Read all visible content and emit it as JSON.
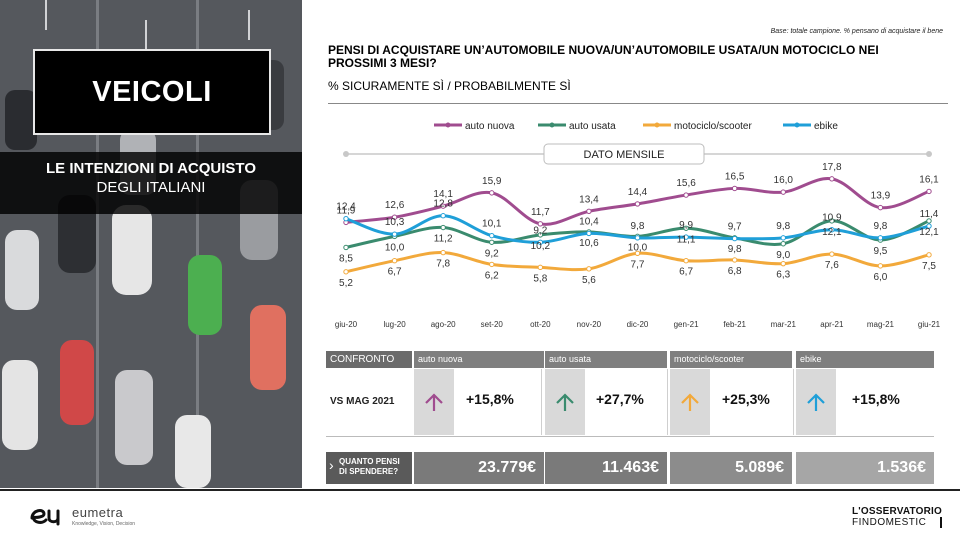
{
  "left_panel": {
    "title": "VEICOLI",
    "subtitle_line1": "LE INTENZIONI DI ACQUISTO",
    "subtitle_line2": "DEGLI ITALIANI"
  },
  "header": {
    "base_note": "Base: totale campione.  % pensano di acquistare il bene",
    "question": "PENSI DI ACQUISTARE  UN’AUTOMOBILE  NUOVA/UN’AUTOMOBILE  USATA/UN MOTOCICLO NEI PROSSIMI 3 MESI?",
    "question_sub": "% SICURAMENTE  SÌ / PROBABILMENTE  SÌ"
  },
  "chart_data": {
    "type": "line",
    "period_label": "DATO MENSILE",
    "categories": [
      "giu-20",
      "lug-20",
      "ago-20",
      "set-20",
      "ott-20",
      "nov-20",
      "dic-20",
      "gen-21",
      "feb-21",
      "mar-21",
      "apr-21",
      "mag-21",
      "giu-21"
    ],
    "series": [
      {
        "name": "auto nuova",
        "color": "#a04c8f",
        "values": [
          11.9,
          12.6,
          14.1,
          15.9,
          11.7,
          13.4,
          14.4,
          15.6,
          16.5,
          16.0,
          17.8,
          13.9,
          16.1
        ]
      },
      {
        "name": "auto usata",
        "color": "#3a8b6e",
        "values": [
          8.5,
          10.0,
          11.2,
          9.2,
          10.2,
          10.6,
          10.0,
          11.1,
          9.8,
          9.0,
          12.1,
          9.5,
          12.1
        ]
      },
      {
        "name": "motociclo/scooter",
        "color": "#f2a93b",
        "values": [
          5.2,
          6.7,
          7.8,
          6.2,
          5.8,
          5.6,
          7.7,
          6.7,
          6.8,
          6.3,
          7.6,
          6.0,
          7.5
        ]
      },
      {
        "name": "ebike",
        "color": "#1f9fd8",
        "values": [
          12.4,
          10.3,
          12.8,
          10.1,
          9.2,
          10.4,
          9.8,
          9.9,
          9.7,
          9.8,
          10.9,
          9.8,
          11.4
        ]
      }
    ],
    "ylim": [
      3,
      19
    ],
    "grid": false,
    "legend": "top"
  },
  "comparison": {
    "header_label": "CONFRONTO",
    "row_label": "VS MAG 2021",
    "items": [
      {
        "name": "auto nuova",
        "change": "+15,8%",
        "arrow_color": "#a04c8f"
      },
      {
        "name": "auto usata",
        "change": "+27,7%",
        "arrow_color": "#3a8b6e"
      },
      {
        "name": "motociclo/scooter",
        "change": "+25,3%",
        "arrow_color": "#f2a93b"
      },
      {
        "name": "ebike",
        "change": "+15,8%",
        "arrow_color": "#1f9fd8"
      }
    ]
  },
  "spend": {
    "label_line1": "QUANTO PENSI",
    "label_line2": "DI SPENDERE?",
    "values": [
      "23.779€",
      "11.463€",
      "5.089€",
      "1.536€"
    ]
  },
  "footer": {
    "eumetra_name": "eumetra",
    "eumetra_tagline": "Knowledge, Vision, Decision",
    "osservatorio_line1": "L'OSSERVATORIO",
    "osservatorio_line2": "FINDOMESTIC"
  }
}
